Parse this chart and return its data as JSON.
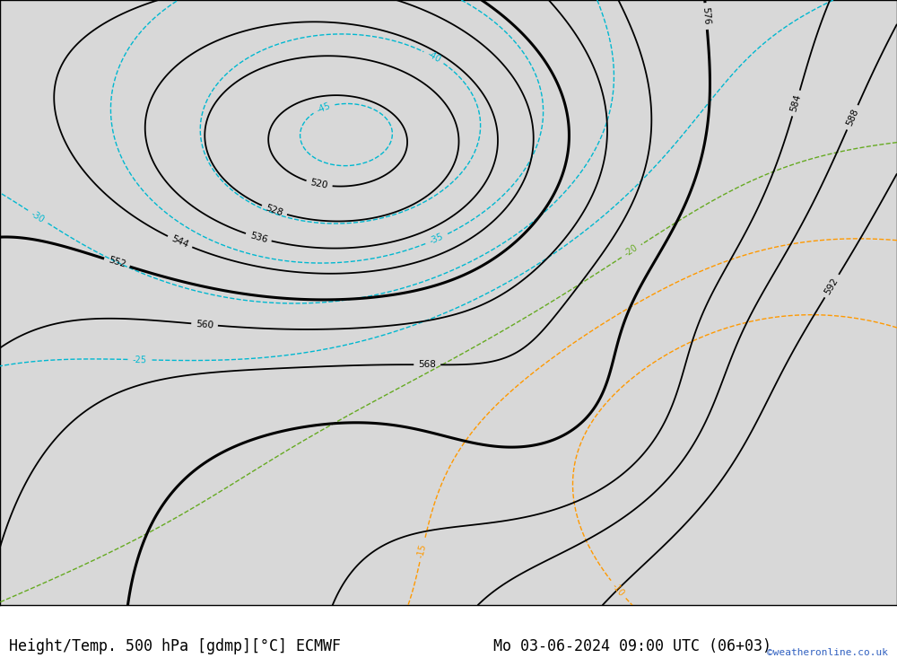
{
  "title_left": "Height/Temp. 500 hPa [gdmp][°C] ECMWF",
  "title_right": "Mo 03-06-2024 09:00 UTC (06+03)",
  "credit": "©weatheronline.co.uk",
  "land_color": "#b5d89a",
  "sea_color": "#d8d8d8",
  "border_color": "#888888",
  "height_contour_color": "#000000",
  "temp_cold_color": "#00b8d0",
  "temp_warm_color": "#ff9900",
  "temp_red_color": "#ff2200",
  "temp_green_color": "#66aa22",
  "title_fontsize": 12,
  "credit_fontsize": 8,
  "fig_width": 10.0,
  "fig_height": 7.33,
  "dpi": 100,
  "extent": [
    -32,
    42,
    27,
    75
  ]
}
